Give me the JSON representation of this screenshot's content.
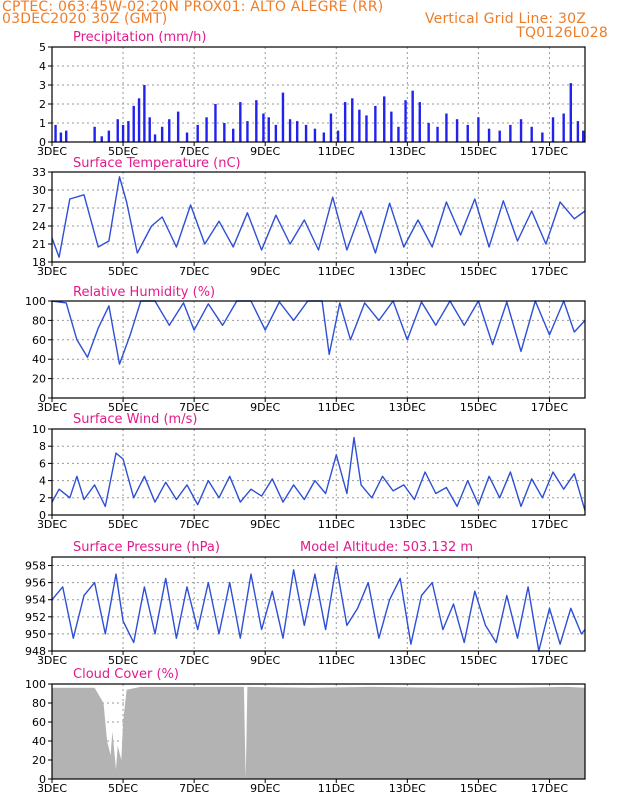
{
  "header": {
    "line1": "CPTEC:   063:45W-02:20N   PROX01: ALTO ALEGRE (RR)",
    "line2": "03DEC2020 30Z (GMT)",
    "grid_note": "Vertical Grid Line: 30Z",
    "code": "TQ0126L028"
  },
  "colors": {
    "header": "#ee7d2a",
    "title": "#e31a8c",
    "series": "#2e4fd6",
    "bars": "#2222ee",
    "cloud": "#b3b3b3"
  },
  "x_axis": {
    "range_days": [
      3.0,
      18.0
    ],
    "ticks": [
      {
        "day": 3,
        "label": "3DEC"
      },
      {
        "day": 5,
        "label": "5DEC"
      },
      {
        "day": 7,
        "label": "7DEC"
      },
      {
        "day": 9,
        "label": "9DEC"
      },
      {
        "day": 11,
        "label": "11DEC"
      },
      {
        "day": 13,
        "label": "13DEC"
      },
      {
        "day": 15,
        "label": "15DEC"
      },
      {
        "day": 17,
        "label": "17DEC"
      }
    ]
  },
  "chart_data": [
    {
      "type": "bar",
      "title": "Precipitation (mm/h)",
      "ylim": [
        0,
        5
      ],
      "yticks": [
        0,
        1,
        2,
        3,
        4,
        5
      ],
      "x": [
        3.1,
        3.25,
        3.4,
        4.2,
        4.4,
        4.6,
        4.85,
        5.0,
        5.15,
        5.3,
        5.45,
        5.6,
        5.75,
        5.9,
        6.1,
        6.3,
        6.55,
        6.8,
        7.1,
        7.35,
        7.6,
        7.85,
        8.1,
        8.3,
        8.5,
        8.75,
        8.95,
        9.1,
        9.3,
        9.5,
        9.7,
        9.9,
        10.15,
        10.4,
        10.65,
        10.85,
        11.05,
        11.25,
        11.45,
        11.65,
        11.85,
        12.1,
        12.35,
        12.55,
        12.75,
        12.95,
        13.15,
        13.35,
        13.6,
        13.85,
        14.1,
        14.4,
        14.7,
        15.0,
        15.3,
        15.6,
        15.9,
        16.2,
        16.5,
        16.8,
        17.1,
        17.4,
        17.6,
        17.8,
        17.95
      ],
      "values": [
        0.9,
        0.5,
        0.6,
        0.8,
        0.3,
        0.6,
        1.2,
        0.9,
        1.1,
        1.9,
        2.3,
        3.0,
        1.3,
        0.4,
        0.8,
        1.2,
        1.6,
        0.5,
        0.9,
        1.3,
        2.0,
        1.0,
        0.7,
        2.1,
        1.1,
        2.2,
        1.5,
        1.3,
        0.9,
        2.6,
        1.2,
        1.1,
        0.9,
        0.7,
        0.5,
        1.5,
        0.6,
        2.1,
        2.3,
        1.7,
        1.4,
        1.9,
        2.4,
        1.6,
        0.8,
        2.2,
        2.7,
        2.1,
        1.0,
        0.8,
        1.5,
        1.2,
        0.9,
        1.3,
        0.7,
        0.6,
        0.9,
        1.2,
        0.8,
        0.5,
        1.3,
        1.5,
        3.1,
        1.1,
        0.6
      ]
    },
    {
      "type": "line",
      "title": "Surface Temperature (nC)",
      "ylim": [
        18,
        33
      ],
      "yticks": [
        18,
        21,
        24,
        27,
        30,
        33
      ],
      "series": [
        {
          "x": [
            3.0,
            3.2,
            3.5,
            3.9,
            4.3,
            4.6,
            4.9,
            5.1,
            5.4,
            5.8,
            6.1,
            6.5,
            6.9,
            7.3,
            7.7,
            8.1,
            8.5,
            8.9,
            9.3,
            9.7,
            10.1,
            10.5,
            10.9,
            11.3,
            11.7,
            12.1,
            12.5,
            12.9,
            13.3,
            13.7,
            14.1,
            14.5,
            14.9,
            15.3,
            15.7,
            16.1,
            16.5,
            16.9,
            17.3,
            17.7,
            18.0
          ],
          "values": [
            22.0,
            18.8,
            28.5,
            29.2,
            20.5,
            21.5,
            32.2,
            28.0,
            19.5,
            24.0,
            25.5,
            20.5,
            27.5,
            21.0,
            24.8,
            20.5,
            26.2,
            20.0,
            25.8,
            21.0,
            25.0,
            20.0,
            28.8,
            20.0,
            26.5,
            19.5,
            27.8,
            20.5,
            25.0,
            20.5,
            28.0,
            22.5,
            28.5,
            20.5,
            28.2,
            21.5,
            26.5,
            21.0,
            28.0,
            25.2,
            26.5
          ]
        }
      ]
    },
    {
      "type": "line",
      "title": "Relative Humidity (%)",
      "ylim": [
        0,
        100
      ],
      "yticks": [
        0,
        20,
        40,
        60,
        80,
        100
      ],
      "series": [
        {
          "x": [
            3.0,
            3.4,
            3.7,
            4.0,
            4.3,
            4.6,
            4.9,
            5.2,
            5.5,
            5.9,
            6.3,
            6.7,
            7.0,
            7.4,
            7.8,
            8.2,
            8.6,
            9.0,
            9.4,
            9.8,
            10.2,
            10.6,
            10.8,
            11.1,
            11.4,
            11.8,
            12.2,
            12.6,
            13.0,
            13.4,
            13.8,
            14.2,
            14.6,
            15.0,
            15.4,
            15.8,
            16.2,
            16.6,
            17.0,
            17.4,
            17.7,
            18.0
          ],
          "values": [
            100,
            98,
            60,
            42,
            72,
            95,
            35,
            65,
            100,
            100,
            75,
            98,
            70,
            97,
            75,
            100,
            100,
            70,
            99,
            80,
            100,
            100,
            45,
            98,
            60,
            98,
            80,
            100,
            60,
            99,
            75,
            100,
            75,
            100,
            55,
            99,
            48,
            100,
            65,
            100,
            68,
            80
          ]
        }
      ]
    },
    {
      "type": "line",
      "title": "Surface Wind (m/s)",
      "ylim": [
        0,
        10
      ],
      "yticks": [
        0,
        2,
        4,
        6,
        8,
        10
      ],
      "series": [
        {
          "x": [
            3.0,
            3.2,
            3.5,
            3.7,
            3.9,
            4.2,
            4.5,
            4.8,
            5.0,
            5.3,
            5.6,
            5.9,
            6.2,
            6.5,
            6.8,
            7.1,
            7.4,
            7.7,
            8.0,
            8.3,
            8.6,
            8.9,
            9.2,
            9.5,
            9.8,
            10.1,
            10.4,
            10.7,
            11.0,
            11.3,
            11.5,
            11.7,
            12.0,
            12.3,
            12.6,
            12.9,
            13.2,
            13.5,
            13.8,
            14.1,
            14.4,
            14.7,
            15.0,
            15.3,
            15.6,
            15.9,
            16.2,
            16.5,
            16.8,
            17.1,
            17.4,
            17.7,
            18.0
          ],
          "values": [
            1.5,
            3.0,
            2.0,
            4.5,
            1.8,
            3.5,
            1.0,
            7.2,
            6.5,
            2.0,
            4.5,
            1.5,
            3.8,
            1.8,
            3.5,
            1.2,
            4.0,
            2.0,
            4.5,
            1.5,
            3.0,
            2.2,
            4.2,
            1.5,
            3.5,
            1.8,
            4.0,
            2.5,
            7.0,
            2.5,
            9.0,
            3.5,
            2.0,
            4.5,
            2.8,
            3.5,
            1.8,
            5.0,
            2.5,
            3.2,
            1.0,
            4.0,
            1.2,
            4.5,
            2.0,
            5.0,
            1.0,
            4.2,
            2.0,
            5.0,
            3.0,
            4.8,
            0.5
          ]
        }
      ]
    },
    {
      "type": "line",
      "title": "Surface Pressure (hPa)",
      "annotation": "Model Altitude: 503.132  m",
      "ylim": [
        948,
        959
      ],
      "yticks": [
        948,
        950,
        952,
        954,
        956,
        958
      ],
      "series": [
        {
          "x": [
            3.0,
            3.3,
            3.6,
            3.9,
            4.2,
            4.5,
            4.8,
            5.0,
            5.3,
            5.6,
            5.9,
            6.2,
            6.5,
            6.8,
            7.1,
            7.4,
            7.7,
            8.0,
            8.3,
            8.6,
            8.9,
            9.2,
            9.5,
            9.8,
            10.1,
            10.4,
            10.7,
            11.0,
            11.3,
            11.6,
            11.9,
            12.2,
            12.5,
            12.8,
            13.1,
            13.4,
            13.7,
            14.0,
            14.3,
            14.6,
            14.9,
            15.2,
            15.5,
            15.8,
            16.1,
            16.4,
            16.7,
            17.0,
            17.3,
            17.6,
            17.9,
            18.0
          ],
          "values": [
            954.0,
            955.5,
            949.5,
            954.5,
            956.0,
            950.0,
            957.0,
            951.5,
            949.0,
            955.5,
            950.0,
            956.5,
            949.5,
            955.5,
            950.5,
            956.0,
            950.0,
            956.0,
            949.5,
            957.0,
            950.5,
            955.0,
            949.5,
            957.5,
            951.0,
            957.0,
            950.5,
            958.0,
            951.0,
            953.0,
            956.0,
            949.5,
            954.0,
            956.5,
            948.8,
            954.5,
            956.0,
            950.5,
            953.5,
            949.0,
            955.0,
            951.0,
            949.0,
            954.5,
            949.5,
            955.5,
            948.0,
            953.0,
            948.8,
            953.0,
            950.0,
            950.5
          ]
        }
      ]
    },
    {
      "type": "area",
      "title": "Cloud Cover (%)",
      "ylim": [
        0,
        100
      ],
      "yticks": [
        0,
        20,
        40,
        60,
        80,
        100
      ],
      "series": [
        {
          "x": [
            3.0,
            4.2,
            4.45,
            4.55,
            4.65,
            4.7,
            4.8,
            4.85,
            4.95,
            5.0,
            5.1,
            5.5,
            8.4,
            8.45,
            8.5,
            10.3,
            12.0,
            14.0,
            16.0,
            17.5,
            18.0
          ],
          "values": [
            96,
            96,
            80,
            40,
            25,
            50,
            10,
            35,
            20,
            60,
            94,
            97,
            97,
            0,
            97,
            96,
            97,
            96,
            96,
            97,
            96
          ]
        }
      ]
    }
  ]
}
